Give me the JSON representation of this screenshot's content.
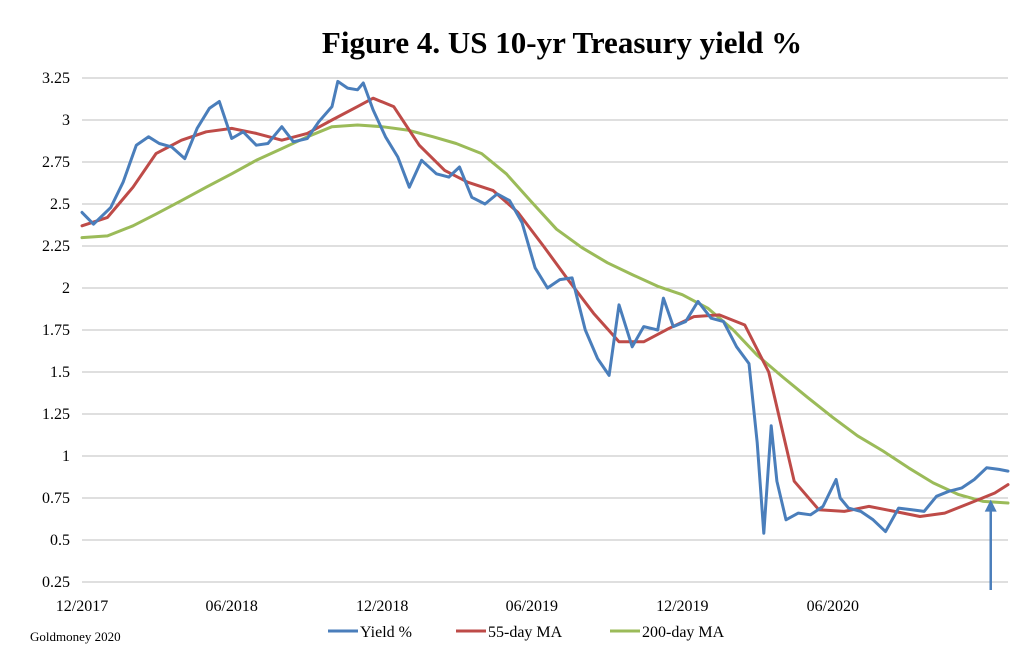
{
  "chart_data": {
    "type": "line",
    "title": "Figure 4. US 10-yr Treasury yield %",
    "source": "Goldmoney 2020",
    "xlabel": "",
    "ylabel": "",
    "ylim": [
      0.25,
      3.25
    ],
    "yticks": [
      "3.25",
      "3",
      "2.75",
      "2.5",
      "2.25",
      "2",
      "1.75",
      "1.5",
      "1.25",
      "1",
      "0.75",
      "0.5",
      "0.25"
    ],
    "xlim": [
      "2017-12-01",
      "2020-12-31"
    ],
    "xticks": [
      {
        "date": "2017-12-01",
        "label": "12/2017"
      },
      {
        "date": "2018-06-01",
        "label": "06/2018"
      },
      {
        "date": "2018-12-01",
        "label": "12/2018"
      },
      {
        "date": "2019-06-01",
        "label": "06/2019"
      },
      {
        "date": "2019-12-01",
        "label": "12/2019"
      },
      {
        "date": "2020-06-01",
        "label": "06/2020"
      }
    ],
    "grid": true,
    "legend_position": "bottom",
    "series": [
      {
        "name": "Yield %",
        "color": "#4a7ebb",
        "x": [
          "2017-12-01",
          "2017-12-15",
          "2018-01-05",
          "2018-01-20",
          "2018-02-05",
          "2018-02-20",
          "2018-03-05",
          "2018-03-20",
          "2018-04-05",
          "2018-04-20",
          "2018-05-05",
          "2018-05-17",
          "2018-06-01",
          "2018-06-15",
          "2018-07-01",
          "2018-07-15",
          "2018-08-01",
          "2018-08-15",
          "2018-09-01",
          "2018-09-15",
          "2018-10-01",
          "2018-10-08",
          "2018-10-20",
          "2018-11-01",
          "2018-11-08",
          "2018-11-20",
          "2018-12-05",
          "2018-12-20",
          "2019-01-03",
          "2019-01-18",
          "2019-02-05",
          "2019-02-20",
          "2019-03-05",
          "2019-03-20",
          "2019-04-05",
          "2019-04-20",
          "2019-05-05",
          "2019-05-20",
          "2019-06-05",
          "2019-06-20",
          "2019-07-05",
          "2019-07-20",
          "2019-08-05",
          "2019-08-20",
          "2019-09-03",
          "2019-09-15",
          "2019-10-01",
          "2019-10-15",
          "2019-11-01",
          "2019-11-08",
          "2019-11-20",
          "2019-12-05",
          "2019-12-20",
          "2020-01-05",
          "2020-01-20",
          "2020-02-05",
          "2020-02-20",
          "2020-03-01",
          "2020-03-09",
          "2020-03-18",
          "2020-03-25",
          "2020-04-05",
          "2020-04-20",
          "2020-05-05",
          "2020-05-20",
          "2020-06-05",
          "2020-06-10",
          "2020-06-20",
          "2020-07-05",
          "2020-07-20",
          "2020-08-04",
          "2020-08-20",
          "2020-09-05",
          "2020-09-20",
          "2020-10-05",
          "2020-10-20",
          "2020-11-05",
          "2020-11-20",
          "2020-12-05",
          "2020-12-20",
          "2020-12-31"
        ],
        "values": [
          2.45,
          2.38,
          2.48,
          2.63,
          2.85,
          2.9,
          2.86,
          2.84,
          2.77,
          2.95,
          3.07,
          3.11,
          2.89,
          2.93,
          2.85,
          2.86,
          2.96,
          2.87,
          2.89,
          2.99,
          3.08,
          3.23,
          3.19,
          3.18,
          3.22,
          3.06,
          2.9,
          2.78,
          2.6,
          2.76,
          2.68,
          2.66,
          2.72,
          2.54,
          2.5,
          2.56,
          2.52,
          2.39,
          2.12,
          2.0,
          2.05,
          2.06,
          1.75,
          1.58,
          1.48,
          1.9,
          1.65,
          1.77,
          1.75,
          1.94,
          1.77,
          1.8,
          1.92,
          1.82,
          1.8,
          1.65,
          1.55,
          1.08,
          0.54,
          1.18,
          0.85,
          0.62,
          0.66,
          0.65,
          0.7,
          0.86,
          0.75,
          0.69,
          0.67,
          0.62,
          0.55,
          0.69,
          0.68,
          0.67,
          0.76,
          0.79,
          0.81,
          0.86,
          0.93,
          0.92,
          0.91
        ]
      },
      {
        "name": "55-day MA",
        "color": "#be4b48",
        "x": [
          "2017-12-01",
          "2018-01-01",
          "2018-02-01",
          "2018-03-01",
          "2018-04-01",
          "2018-05-01",
          "2018-06-01",
          "2018-07-01",
          "2018-08-01",
          "2018-09-01",
          "2018-10-01",
          "2018-11-01",
          "2018-11-20",
          "2018-12-15",
          "2019-01-15",
          "2019-02-15",
          "2019-03-15",
          "2019-04-15",
          "2019-05-15",
          "2019-06-15",
          "2019-07-15",
          "2019-08-15",
          "2019-09-15",
          "2019-10-15",
          "2019-11-15",
          "2019-12-15",
          "2020-01-15",
          "2020-02-15",
          "2020-03-15",
          "2020-04-15",
          "2020-05-15",
          "2020-06-15",
          "2020-07-15",
          "2020-08-15",
          "2020-09-15",
          "2020-10-15",
          "2020-11-15",
          "2020-12-15",
          "2020-12-31"
        ],
        "values": [
          2.37,
          2.42,
          2.6,
          2.8,
          2.88,
          2.93,
          2.95,
          2.92,
          2.88,
          2.92,
          3.0,
          3.08,
          3.13,
          3.08,
          2.85,
          2.7,
          2.63,
          2.58,
          2.45,
          2.25,
          2.05,
          1.85,
          1.68,
          1.68,
          1.76,
          1.83,
          1.84,
          1.78,
          1.5,
          0.85,
          0.68,
          0.67,
          0.7,
          0.67,
          0.64,
          0.66,
          0.72,
          0.78,
          0.83
        ]
      },
      {
        "name": "200-day MA",
        "color": "#9bbb59",
        "x": [
          "2017-12-01",
          "2018-01-01",
          "2018-02-01",
          "2018-03-01",
          "2018-04-01",
          "2018-05-01",
          "2018-06-01",
          "2018-07-01",
          "2018-08-01",
          "2018-09-01",
          "2018-10-01",
          "2018-11-01",
          "2018-12-01",
          "2019-01-01",
          "2019-02-01",
          "2019-03-01",
          "2019-04-01",
          "2019-05-01",
          "2019-06-01",
          "2019-07-01",
          "2019-08-01",
          "2019-09-01",
          "2019-10-01",
          "2019-11-01",
          "2019-12-01",
          "2020-01-01",
          "2020-02-01",
          "2020-03-01",
          "2020-04-01",
          "2020-05-01",
          "2020-06-01",
          "2020-07-01",
          "2020-08-01",
          "2020-09-01",
          "2020-10-01",
          "2020-11-01",
          "2020-12-01",
          "2020-12-31"
        ],
        "values": [
          2.3,
          2.31,
          2.37,
          2.44,
          2.52,
          2.6,
          2.68,
          2.76,
          2.83,
          2.9,
          2.96,
          2.97,
          2.96,
          2.94,
          2.9,
          2.86,
          2.8,
          2.68,
          2.51,
          2.35,
          2.24,
          2.15,
          2.08,
          2.01,
          1.96,
          1.88,
          1.75,
          1.6,
          1.47,
          1.35,
          1.23,
          1.12,
          1.03,
          0.93,
          0.84,
          0.77,
          0.73,
          0.72
        ]
      }
    ],
    "annotation": {
      "type": "arrow",
      "date": "2020-12-10",
      "value": 0.74,
      "color": "#4a7ebb"
    }
  }
}
